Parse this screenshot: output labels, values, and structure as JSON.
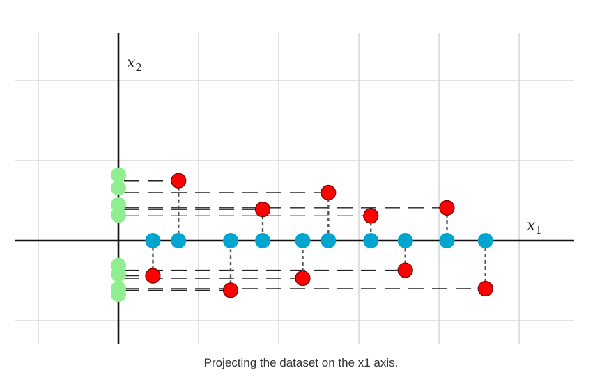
{
  "caption": "Projecting the dataset on the x1 axis.",
  "axes": {
    "x_label": {
      "base": "x",
      "sub": "1"
    },
    "y_label": {
      "base": "x",
      "sub": "2"
    }
  },
  "colors": {
    "grid": "#cfcfcf",
    "axis": "#111111",
    "original": "#ff0000",
    "projection_x1": "#00a5cf",
    "projection_x2": "#90ee90",
    "guide": "#222222",
    "connector": "#555555"
  },
  "chart_data": {
    "type": "scatter",
    "xlim": [
      -1.3,
      5.7
    ],
    "ylim": [
      -1.25,
      2.6
    ],
    "grid": true,
    "points": [
      {
        "x": 0.43,
        "y": -0.44
      },
      {
        "x": 0.75,
        "y": 0.75
      },
      {
        "x": 1.4,
        "y": -0.62
      },
      {
        "x": 1.8,
        "y": 0.39
      },
      {
        "x": 2.3,
        "y": -0.47
      },
      {
        "x": 2.62,
        "y": 0.6
      },
      {
        "x": 3.15,
        "y": 0.31
      },
      {
        "x": 3.58,
        "y": -0.37
      },
      {
        "x": 4.1,
        "y": 0.41
      },
      {
        "x": 4.58,
        "y": -0.6
      }
    ],
    "projection_x2": [
      0.82,
      0.66,
      0.45,
      0.32,
      -0.31,
      -0.42,
      -0.6,
      -0.67
    ]
  }
}
